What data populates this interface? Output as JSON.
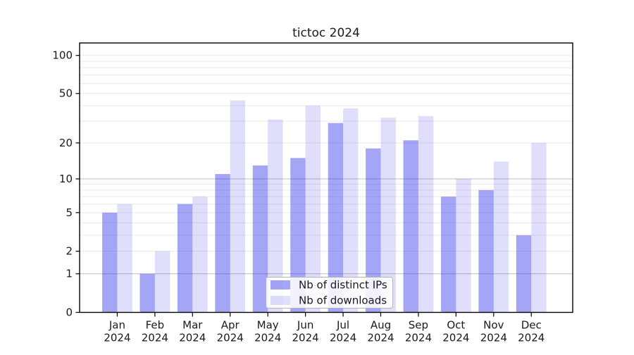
{
  "figure": {
    "background": "#ffffff",
    "title": "tictoc 2024"
  },
  "legend": {
    "items": [
      {
        "label": "Nb of distinct IPs",
        "color": "rgba(40,40,230,0.42)"
      },
      {
        "label": "Nb of downloads",
        "color": "rgba(40,40,230,0.15)"
      }
    ]
  },
  "chart_data": {
    "type": "bar",
    "title": "tictoc 2024",
    "categories": [
      "Jan 2024",
      "Feb 2024",
      "Mar 2024",
      "Apr 2024",
      "May 2024",
      "Jun 2024",
      "Jul 2024",
      "Aug 2024",
      "Sep 2024",
      "Oct 2024",
      "Nov 2024",
      "Dec 2024"
    ],
    "series": [
      {
        "name": "Nb of distinct IPs",
        "color": "rgba(40,40,230,0.42)",
        "values": [
          5,
          1,
          6,
          11,
          13,
          15,
          29,
          18,
          21,
          7,
          8,
          3
        ]
      },
      {
        "name": "Nb of downloads",
        "color": "rgba(40,40,230,0.15)",
        "values": [
          6,
          2,
          7,
          44,
          31,
          40,
          38,
          32,
          33,
          10,
          14,
          20
        ]
      }
    ],
    "xlabel": "",
    "ylabel": "",
    "yscale": "log1p",
    "ylim": [
      0,
      100
    ],
    "y_ticks": [
      0,
      1,
      2,
      5,
      10,
      20,
      50,
      100
    ],
    "grid": {
      "major_values": [
        1,
        10
      ],
      "minor_values": [
        2,
        3,
        4,
        5,
        6,
        7,
        8,
        9,
        20,
        30,
        40,
        50,
        60,
        70,
        80,
        90,
        100
      ],
      "major_color": "#c6c6c6",
      "minor_color": "#e9e9e9"
    },
    "legend_position": "lower center"
  }
}
